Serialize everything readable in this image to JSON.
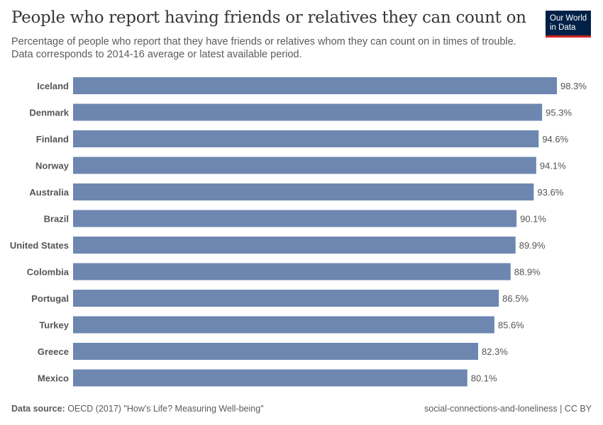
{
  "header": {
    "title": "People who report having friends or relatives they can count on",
    "subtitle_line1": "Percentage of people who report that they have friends or relatives whom they can count on in times of trouble.",
    "subtitle_line2": "Data corresponds to 2014-16 average or latest available period.",
    "logo_line1": "Our World",
    "logo_line2": "in Data"
  },
  "footer": {
    "source_label": "Data source:",
    "source_text": " OECD (2017) \"How's Life? Measuring Well-being\"",
    "right_text": "social-connections-and-loneliness | CC BY"
  },
  "colors": {
    "bar": "#6d87b0",
    "logo_bg": "#002147",
    "logo_accent": "#ce261e"
  },
  "chart_data": {
    "type": "bar",
    "orientation": "horizontal",
    "unit": "%",
    "categories": [
      "Iceland",
      "Denmark",
      "Finland",
      "Norway",
      "Australia",
      "Brazil",
      "United States",
      "Colombia",
      "Portugal",
      "Turkey",
      "Greece",
      "Mexico"
    ],
    "values": [
      98.3,
      95.3,
      94.6,
      94.1,
      93.6,
      90.1,
      89.9,
      88.9,
      86.5,
      85.6,
      82.3,
      80.1
    ],
    "labels": [
      "98.3%",
      "95.3%",
      "94.6%",
      "94.1%",
      "93.6%",
      "90.1%",
      "89.9%",
      "88.9%",
      "86.5%",
      "85.6%",
      "82.3%",
      "80.1%"
    ],
    "xlim": [
      0,
      98.3
    ],
    "grid": false
  }
}
